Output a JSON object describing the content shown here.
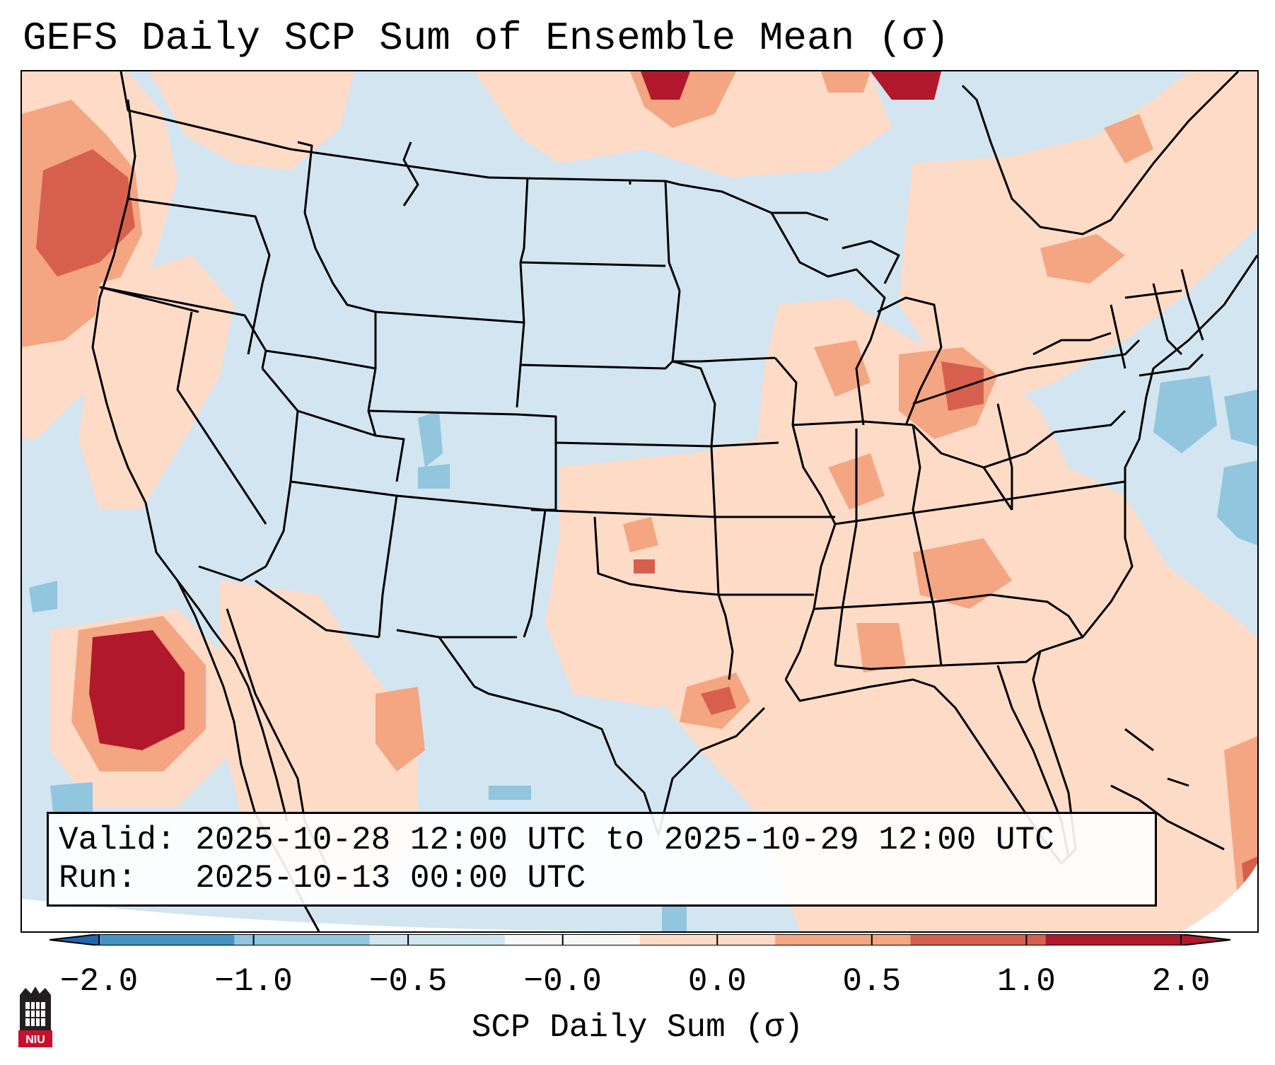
{
  "title": "GEFS Daily SCP Sum of Ensemble Mean (σ)",
  "info": {
    "valid": "Valid: 2025-10-28 12:00 UTC to 2025-10-29 12:00 UTC",
    "run": "Run:   2025-10-13 00:00 UTC"
  },
  "colorbar": {
    "label": "SCP Daily Sum (σ)",
    "ticks": [
      "−2.0",
      "−1.0",
      "−0.5",
      "−0.0",
      "0.0",
      "0.5",
      "1.0",
      "2.0"
    ],
    "bin_colors": [
      "#4393c3",
      "#92c5de",
      "#d1e5f0",
      "#f7f7f7",
      "#fddbc7",
      "#f4a582",
      "#d6604d",
      "#b2182b"
    ],
    "under_color": "#2166ac",
    "over_color": "#b2182b"
  },
  "map": {
    "region": "CONUS",
    "background_color": "#d2e5f1",
    "levels": [
      "−1.0 to −0.5",
      "−0.5 to −0.0",
      "0.0 to 0.5",
      "0.5 to 1.0",
      "1.0 to 2.0",
      "> 2.0"
    ],
    "level_colors": [
      "#92c5de",
      "#d1e5f0",
      "#fddbc7",
      "#f4a582",
      "#d6604d",
      "#b2182b"
    ]
  },
  "logo": {
    "text": "NIU",
    "color": "#c8102e"
  }
}
